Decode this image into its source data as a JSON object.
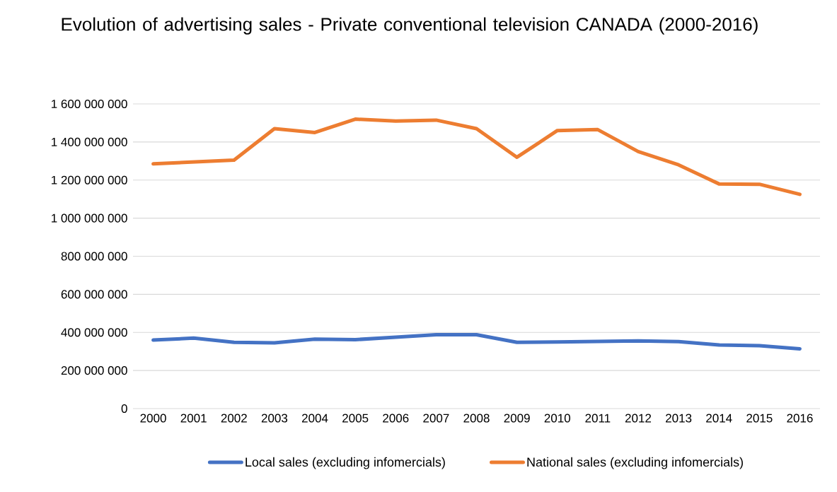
{
  "chart_data": {
    "type": "line",
    "title": "Evolution of advertising sales - Private conventional television CANADA (2000-2016)",
    "categories": [
      "2000",
      "2001",
      "2002",
      "2003",
      "2004",
      "2005",
      "2006",
      "2007",
      "2008",
      "2009",
      "2010",
      "2011",
      "2012",
      "2013",
      "2014",
      "2015",
      "2016"
    ],
    "series": [
      {
        "name": "Local sales (excluding infomercials)",
        "color": "#4472c4",
        "values": [
          360000000,
          370000000,
          348000000,
          345000000,
          365000000,
          362000000,
          375000000,
          388000000,
          388000000,
          348000000,
          350000000,
          353000000,
          355000000,
          352000000,
          334000000,
          330000000,
          314000000
        ]
      },
      {
        "name": "National sales (excluding infomercials)",
        "color": "#ed7d31",
        "values": [
          1285000000,
          1295000000,
          1305000000,
          1470000000,
          1450000000,
          1520000000,
          1510000000,
          1515000000,
          1470000000,
          1320000000,
          1460000000,
          1465000000,
          1350000000,
          1280000000,
          1180000000,
          1178000000,
          1125000000
        ]
      }
    ],
    "ylim": [
      0,
      1600000000
    ],
    "yticks": [
      0,
      {
        "value": 200000000,
        "label": "200 000 000"
      },
      {
        "value": 400000000,
        "label": "400 000 000"
      },
      {
        "value": 600000000,
        "label": "600 000 000"
      },
      {
        "value": 800000000,
        "label": "800 000 000"
      },
      {
        "value": 1000000000,
        "label": "1 000 000 000"
      },
      {
        "value": 1200000000,
        "label": "1 200 000 000"
      },
      {
        "value": 1400000000,
        "label": "1 400 000 000"
      },
      {
        "value": 1600000000,
        "label": "1 600 000 000"
      }
    ],
    "grid": "y",
    "legend": "bottom"
  }
}
